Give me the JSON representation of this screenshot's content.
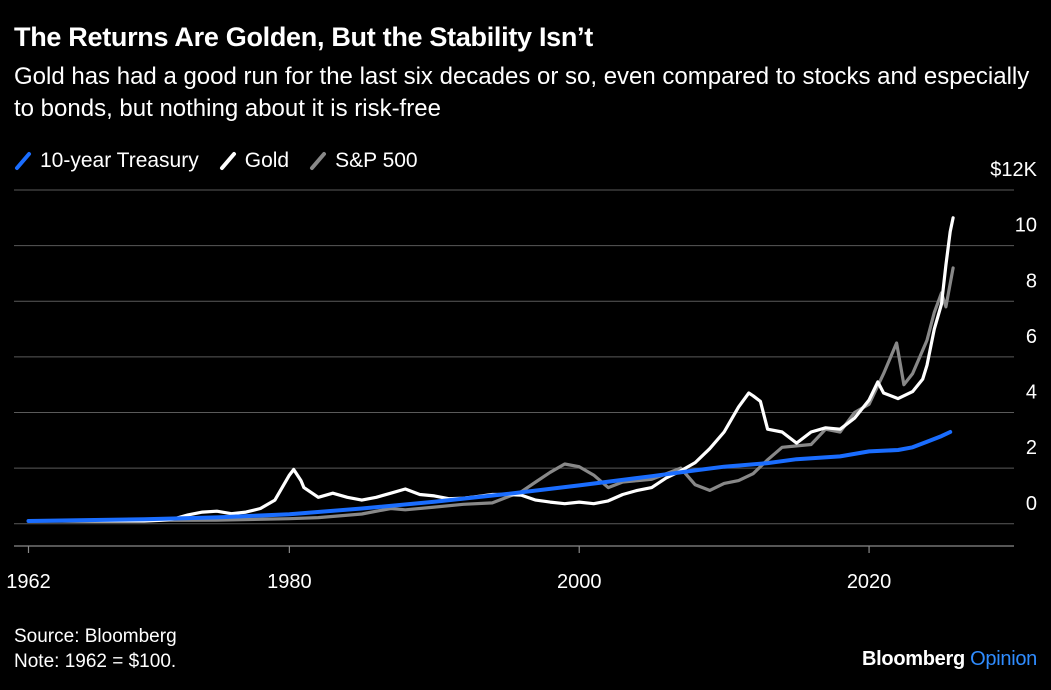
{
  "title": "The Returns Are Golden, But the Stability Isn’t",
  "subtitle": "Gold has had a good run for the last six decades or so, even compared to stocks and especially to bonds, but nothing about it is risk-free",
  "source": "Source: Bloomberg",
  "note": "Note: 1962 = $100.",
  "brand": {
    "name": "Bloomberg",
    "section": "Opinion",
    "section_color": "#2f8cff"
  },
  "chart_data": {
    "type": "line",
    "title": "The Returns Are Golden, But the Stability Isn’t",
    "subtitle": "Gold has had a good run for the last six decades or so, even compared to stocks and especially to bonds, but nothing about it is risk-free",
    "xlabel": "",
    "ylabel": "",
    "x_ticks": [
      "1962",
      "1980",
      "2000",
      "2020"
    ],
    "x_tick_values": [
      1962,
      1980,
      2000,
      2020
    ],
    "xlim": [
      1961,
      2030
    ],
    "y_ticks": [
      "$12K",
      "10",
      "8",
      "6",
      "4",
      "2",
      "0"
    ],
    "y_tick_values": [
      12,
      10,
      8,
      6,
      4,
      2,
      0
    ],
    "ylim": [
      -0.8,
      12
    ],
    "y_unit": "thousands of dollars",
    "grid": true,
    "legend_position": "top-left",
    "series": [
      {
        "name": "10-year Treasury",
        "color": "#1a6dff",
        "points": [
          [
            1962,
            0.1
          ],
          [
            1966,
            0.13
          ],
          [
            1970,
            0.16
          ],
          [
            1975,
            0.23
          ],
          [
            1980,
            0.34
          ],
          [
            1985,
            0.55
          ],
          [
            1990,
            0.79
          ],
          [
            1995,
            1.07
          ],
          [
            2000,
            1.38
          ],
          [
            2005,
            1.71
          ],
          [
            2008,
            1.92
          ],
          [
            2010,
            2.05
          ],
          [
            2013,
            2.18
          ],
          [
            2015,
            2.32
          ],
          [
            2018,
            2.42
          ],
          [
            2020,
            2.6
          ],
          [
            2022,
            2.65
          ],
          [
            2023,
            2.75
          ],
          [
            2024,
            2.95
          ],
          [
            2025,
            3.15
          ],
          [
            2025.6,
            3.3
          ]
        ]
      },
      {
        "name": "Gold",
        "color": "#ffffff",
        "points": [
          [
            1962,
            0.1
          ],
          [
            1970,
            0.1
          ],
          [
            1971,
            0.12
          ],
          [
            1972,
            0.17
          ],
          [
            1973,
            0.32
          ],
          [
            1974,
            0.42
          ],
          [
            1975,
            0.45
          ],
          [
            1976,
            0.36
          ],
          [
            1977,
            0.42
          ],
          [
            1978,
            0.55
          ],
          [
            1979,
            0.85
          ],
          [
            1980,
            1.75
          ],
          [
            1980.3,
            1.95
          ],
          [
            1980.8,
            1.55
          ],
          [
            1981,
            1.3
          ],
          [
            1982,
            0.95
          ],
          [
            1983,
            1.1
          ],
          [
            1984,
            0.95
          ],
          [
            1985,
            0.85
          ],
          [
            1986,
            0.95
          ],
          [
            1987,
            1.1
          ],
          [
            1988,
            1.25
          ],
          [
            1989,
            1.05
          ],
          [
            1990,
            1.0
          ],
          [
            1991,
            0.9
          ],
          [
            1992,
            0.92
          ],
          [
            1993,
            0.98
          ],
          [
            1994,
            1.05
          ],
          [
            1995,
            1.05
          ],
          [
            1996,
            1.03
          ],
          [
            1997,
            0.85
          ],
          [
            1998,
            0.78
          ],
          [
            1999,
            0.72
          ],
          [
            2000,
            0.78
          ],
          [
            2001,
            0.72
          ],
          [
            2002,
            0.82
          ],
          [
            2003,
            1.05
          ],
          [
            2004,
            1.2
          ],
          [
            2005,
            1.3
          ],
          [
            2006,
            1.65
          ],
          [
            2007,
            1.9
          ],
          [
            2008,
            2.2
          ],
          [
            2009,
            2.7
          ],
          [
            2010,
            3.3
          ],
          [
            2011,
            4.2
          ],
          [
            2011.7,
            4.7
          ],
          [
            2012,
            4.6
          ],
          [
            2012.5,
            4.4
          ],
          [
            2013,
            3.4
          ],
          [
            2014,
            3.3
          ],
          [
            2015,
            2.9
          ],
          [
            2016,
            3.3
          ],
          [
            2017,
            3.45
          ],
          [
            2018,
            3.4
          ],
          [
            2019,
            3.8
          ],
          [
            2020,
            4.45
          ],
          [
            2020.6,
            5.1
          ],
          [
            2021,
            4.7
          ],
          [
            2022,
            4.5
          ],
          [
            2023,
            4.75
          ],
          [
            2023.7,
            5.2
          ],
          [
            2024,
            5.7
          ],
          [
            2024.5,
            7.0
          ],
          [
            2025,
            7.9
          ],
          [
            2025.3,
            9.3
          ],
          [
            2025.6,
            10.5
          ],
          [
            2025.8,
            11.0
          ]
        ]
      },
      {
        "name": "S&P 500",
        "color": "#888888",
        "points": [
          [
            1962,
            0.1
          ],
          [
            1970,
            0.12
          ],
          [
            1975,
            0.13
          ],
          [
            1980,
            0.18
          ],
          [
            1982,
            0.22
          ],
          [
            1985,
            0.35
          ],
          [
            1987,
            0.55
          ],
          [
            1988,
            0.5
          ],
          [
            1990,
            0.6
          ],
          [
            1992,
            0.7
          ],
          [
            1994,
            0.75
          ],
          [
            1995,
            0.95
          ],
          [
            1996,
            1.15
          ],
          [
            1997,
            1.5
          ],
          [
            1998,
            1.85
          ],
          [
            1999,
            2.15
          ],
          [
            2000,
            2.05
          ],
          [
            2001,
            1.75
          ],
          [
            2002,
            1.3
          ],
          [
            2003,
            1.5
          ],
          [
            2004,
            1.55
          ],
          [
            2005,
            1.6
          ],
          [
            2006,
            1.8
          ],
          [
            2007,
            2.0
          ],
          [
            2008,
            1.4
          ],
          [
            2009,
            1.2
          ],
          [
            2010,
            1.45
          ],
          [
            2011,
            1.55
          ],
          [
            2012,
            1.8
          ],
          [
            2013,
            2.3
          ],
          [
            2014,
            2.75
          ],
          [
            2015,
            2.8
          ],
          [
            2016,
            2.85
          ],
          [
            2017,
            3.4
          ],
          [
            2018,
            3.3
          ],
          [
            2019,
            4.0
          ],
          [
            2020,
            4.3
          ],
          [
            2021,
            5.4
          ],
          [
            2021.9,
            6.5
          ],
          [
            2022.4,
            5.0
          ],
          [
            2023,
            5.4
          ],
          [
            2024,
            6.6
          ],
          [
            2024.5,
            7.6
          ],
          [
            2025,
            8.3
          ],
          [
            2025.3,
            7.8
          ],
          [
            2025.8,
            9.2
          ]
        ]
      }
    ]
  }
}
